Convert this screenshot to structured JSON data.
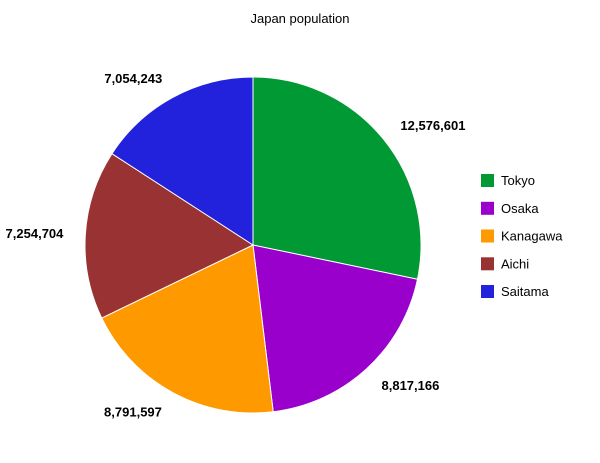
{
  "chart_data": {
    "type": "pie",
    "title": "Japan population",
    "legend_position": "right",
    "start_angle": "top-clockwise",
    "slices": [
      {
        "name": "Tokyo",
        "value": 12576601,
        "label": "12,576,601",
        "color": "#009933"
      },
      {
        "name": "Osaka",
        "value": 8817166,
        "label": "8,817,166",
        "color": "#9900cc"
      },
      {
        "name": "Kanagawa",
        "value": 8791597,
        "label": "8,791,597",
        "color": "#ff9900"
      },
      {
        "name": "Aichi",
        "value": 7254704,
        "label": "7,254,704",
        "color": "#993333"
      },
      {
        "name": "Saitama",
        "value": 7054243,
        "label": "7,054,243",
        "color": "#2222dd"
      }
    ]
  }
}
